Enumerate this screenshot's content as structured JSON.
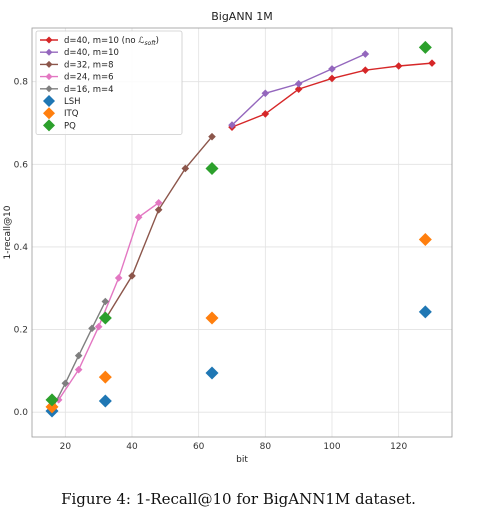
{
  "caption": "Figure 4: 1-Recall@10 for BigANN1M dataset.",
  "chart_data": {
    "type": "line",
    "title": "BigANN 1M",
    "xlabel": "bit",
    "ylabel": "1-recall@10",
    "xlim": [
      10,
      136
    ],
    "ylim": [
      -0.06,
      0.93
    ],
    "xticks": [
      20,
      40,
      60,
      80,
      100,
      120
    ],
    "yticks": [
      0.0,
      0.2,
      0.4,
      0.6,
      0.8
    ],
    "ytick_labels": [
      "0.0",
      "0.2",
      "0.4",
      "0.6",
      "0.8"
    ],
    "grid": true,
    "legend_position": "top-left",
    "series": [
      {
        "name": "d=40, m=10 (no ",
        "name_math": "ℒ",
        "name_sub": "soft",
        "name_close": ")",
        "kind": "line",
        "color": "#d62728",
        "x": [
          70,
          80,
          90,
          100,
          110,
          120,
          130
        ],
        "y": [
          0.69,
          0.722,
          0.782,
          0.808,
          0.828,
          0.838,
          0.845
        ]
      },
      {
        "name": "d=40, m=10",
        "kind": "line",
        "color": "#9467bd",
        "x": [
          70,
          80,
          90,
          100,
          110
        ],
        "y": [
          0.695,
          0.772,
          0.795,
          0.831,
          0.867
        ]
      },
      {
        "name": "d=32, m=8",
        "kind": "line",
        "color": "#8c564b",
        "x": [
          32,
          40,
          48,
          56,
          64
        ],
        "y": [
          0.225,
          0.33,
          0.49,
          0.59,
          0.667
        ]
      },
      {
        "name": "d=24, m=6",
        "kind": "line",
        "color": "#e377c2",
        "x": [
          18,
          24,
          30,
          36,
          42,
          48
        ],
        "y": [
          0.03,
          0.103,
          0.207,
          0.325,
          0.472,
          0.507
        ]
      },
      {
        "name": "d=16, m=4",
        "kind": "line",
        "color": "#7f7f7f",
        "x": [
          16,
          20,
          24,
          28,
          32
        ],
        "y": [
          0.007,
          0.07,
          0.137,
          0.203,
          0.268
        ]
      },
      {
        "name": "LSH",
        "kind": "scatter",
        "color": "#1f77b4",
        "x": [
          16,
          32,
          64,
          128
        ],
        "y": [
          0.003,
          0.027,
          0.095,
          0.243
        ]
      },
      {
        "name": "ITQ",
        "kind": "scatter",
        "color": "#ff7f0e",
        "x": [
          16,
          32,
          64,
          128
        ],
        "y": [
          0.013,
          0.085,
          0.228,
          0.418
        ]
      },
      {
        "name": "PQ",
        "kind": "scatter",
        "color": "#2ca02c",
        "x": [
          16,
          32,
          64,
          128
        ],
        "y": [
          0.03,
          0.228,
          0.59,
          0.883
        ]
      }
    ]
  }
}
